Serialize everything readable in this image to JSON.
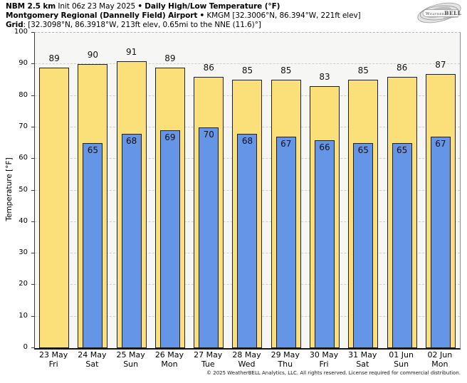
{
  "title": {
    "model": "NBM 2.5 km",
    "init": "Init 06z 23 May 2025",
    "bullet": "•",
    "product": "Daily High/Low Temperature (°F)",
    "station": "Montgomery Regional (Dannelly Field) Airport",
    "station_bullet": "•",
    "station_meta": "KMGM [32.3006°N, 86.394°W, 221ft elev]",
    "grid_label": "Grid",
    "grid_meta": ": [32.3098°N, 86.3918°W, 213ft elev, 0.65mi to the NNE (11.6)°]"
  },
  "logo": {
    "weather": "Weather",
    "bell": "BELL"
  },
  "chart_data": {
    "type": "bar",
    "title": "Daily High/Low Temperature (°F)",
    "ylabel": "Temperature [°F]",
    "xlabel": "",
    "ylim": [
      0,
      100
    ],
    "yticks": [
      0,
      10,
      20,
      30,
      40,
      50,
      60,
      70,
      80,
      90,
      100
    ],
    "grid": "horizontal-dashed",
    "legend_position": "none",
    "categories": [
      {
        "date": "23 May",
        "day": "Fri"
      },
      {
        "date": "24 May",
        "day": "Sat"
      },
      {
        "date": "25 May",
        "day": "Sun"
      },
      {
        "date": "26 May",
        "day": "Mon"
      },
      {
        "date": "27 May",
        "day": "Tue"
      },
      {
        "date": "28 May",
        "day": "Wed"
      },
      {
        "date": "29 May",
        "day": "Thu"
      },
      {
        "date": "30 May",
        "day": "Fri"
      },
      {
        "date": "31 May",
        "day": "Sat"
      },
      {
        "date": "01 Jun",
        "day": "Sun"
      },
      {
        "date": "02 Jun",
        "day": "Mon"
      }
    ],
    "series": [
      {
        "name": "High",
        "color": "#fbe07a",
        "values": [
          89,
          90,
          91,
          89,
          86,
          85,
          85,
          83,
          85,
          86,
          87
        ]
      },
      {
        "name": "Low",
        "color": "#6495e7",
        "values": [
          null,
          65,
          68,
          69,
          70,
          68,
          67,
          66,
          65,
          65,
          67
        ]
      }
    ]
  },
  "footer": {
    "copyright": "© 2025 WeatherBELL Analytics, LLC. All rights reserved. License required for commercial distribution."
  }
}
